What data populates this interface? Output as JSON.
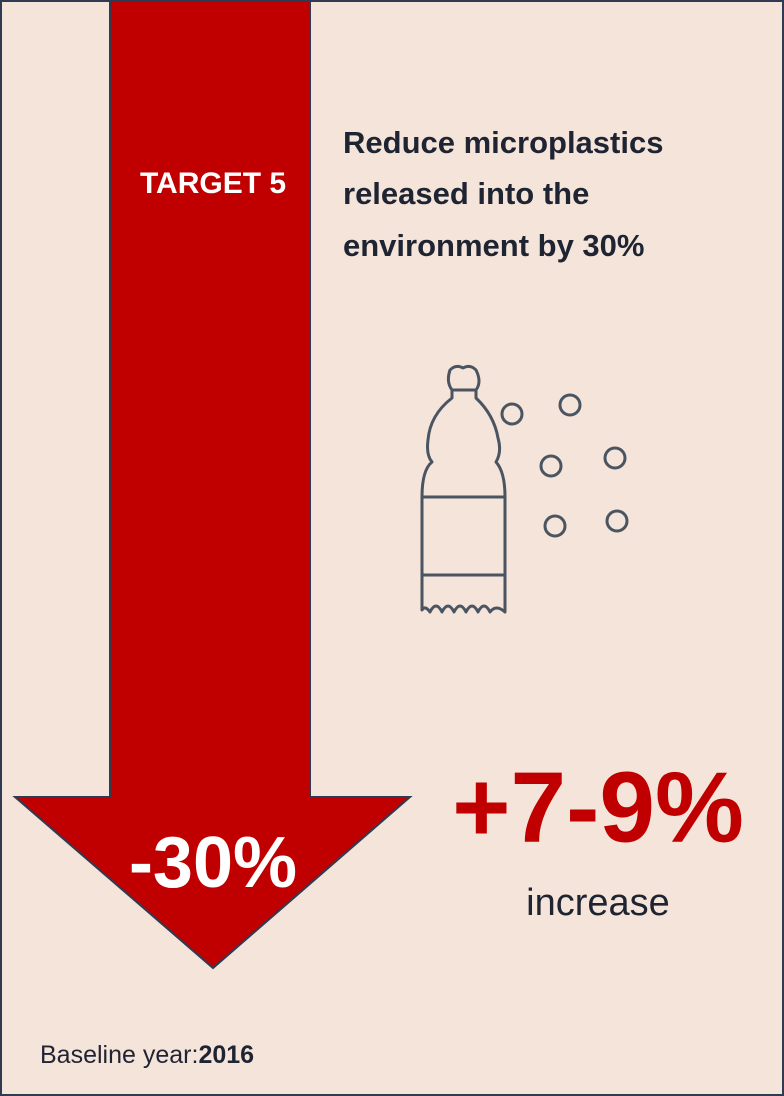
{
  "target": {
    "label": "TARGET 5",
    "description": [
      "Reduce microplastics",
      "released into the",
      "environment by 30%"
    ],
    "reduction": "-30%"
  },
  "result": {
    "value": "+7-9%",
    "caption": "increase"
  },
  "baseline": {
    "label": "Baseline year:",
    "year": "2016"
  }
}
